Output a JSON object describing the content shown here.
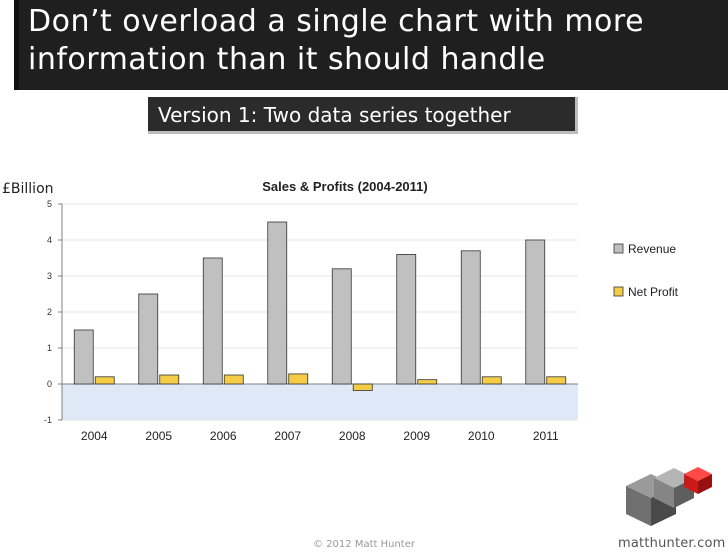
{
  "slide": {
    "title_line1": "Don’t overload a single chart with more",
    "title_line2": "information than it should handle",
    "subtitle": "Version 1: Two data series together",
    "footer": "© 2012 Matt Hunter",
    "brand": "matthunter.com"
  },
  "chart_data": {
    "type": "bar",
    "title": "Sales & Profits (2004-2011)",
    "ylabel": "£Billion",
    "xlabel": "",
    "categories": [
      "2004",
      "2005",
      "2006",
      "2007",
      "2008",
      "2009",
      "2010",
      "2011"
    ],
    "series": [
      {
        "name": "Revenue",
        "values": [
          1.5,
          2.5,
          3.5,
          4.5,
          3.2,
          3.6,
          3.7,
          4.0
        ],
        "color": "#c0c0c0"
      },
      {
        "name": "Net Profit",
        "values": [
          0.2,
          0.25,
          0.25,
          0.28,
          -0.18,
          0.12,
          0.2,
          0.2
        ],
        "color": "#f5cc45"
      }
    ],
    "ylim": [
      -1,
      5
    ],
    "yticks": [
      "5",
      "4",
      "3",
      "2",
      "1",
      "0",
      "-1"
    ],
    "grid": true,
    "legend": "right",
    "plot_background": "#ffffff",
    "negative_band_color": "#dfe8f6"
  }
}
